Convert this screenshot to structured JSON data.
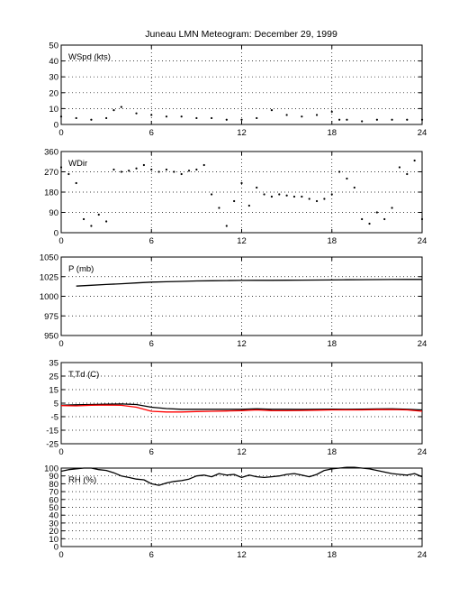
{
  "title": "Juneau LMN Meteogram:   December 29, 1999",
  "chart_data": [
    {
      "type": "scatter",
      "id": "wspd",
      "label": "WSpd (kts)",
      "xlim": [
        0,
        24
      ],
      "ylim": [
        0,
        50
      ],
      "xticks": [
        "0",
        "6",
        "12",
        "18",
        "24"
      ],
      "yticks": [
        "0",
        "10",
        "20",
        "30",
        "40",
        "50"
      ],
      "grid": true,
      "series": [
        {
          "color": "#000000",
          "x": [
            0,
            1,
            2,
            3,
            3.5,
            4,
            5,
            6,
            7,
            8,
            9,
            10,
            11,
            12,
            13,
            14,
            15,
            16,
            17,
            18,
            18.5,
            19,
            20,
            21,
            22,
            23,
            24
          ],
          "y": [
            5,
            4,
            3,
            4,
            9,
            11,
            7,
            6,
            5,
            5,
            4,
            4,
            3,
            3,
            4,
            9,
            6,
            5,
            6,
            8,
            3,
            3,
            2,
            3,
            3,
            3,
            3
          ]
        }
      ]
    },
    {
      "type": "scatter",
      "id": "wdir",
      "label": "WDir",
      "xlim": [
        0,
        24
      ],
      "ylim": [
        0,
        360
      ],
      "xticks": [
        "0",
        "6",
        "12",
        "18",
        "24"
      ],
      "yticks": [
        "0",
        "90",
        "180",
        "270",
        "360"
      ],
      "grid": true,
      "series": [
        {
          "color": "#000000",
          "x": [
            0,
            0.5,
            1,
            1.5,
            2,
            2.5,
            3,
            3.5,
            4,
            4.5,
            5,
            5.5,
            6,
            6.5,
            7,
            7.5,
            8,
            8.5,
            9,
            9.5,
            10,
            10.5,
            11,
            11.5,
            12,
            12.5,
            13,
            13.5,
            14,
            14.5,
            15,
            15.5,
            16,
            16.5,
            17,
            17.5,
            18,
            18.5,
            19,
            19.5,
            20,
            20.5,
            21,
            21.5,
            22,
            22.5,
            23,
            23.5,
            24
          ],
          "y": [
            290,
            260,
            220,
            60,
            30,
            80,
            50,
            280,
            270,
            275,
            285,
            300,
            280,
            270,
            280,
            270,
            260,
            275,
            280,
            300,
            170,
            110,
            30,
            140,
            220,
            120,
            200,
            170,
            160,
            170,
            165,
            160,
            160,
            150,
            140,
            150,
            170,
            270,
            240,
            200,
            60,
            40,
            90,
            60,
            110,
            290,
            260,
            320,
            60
          ]
        }
      ]
    },
    {
      "type": "line",
      "id": "pressure",
      "label": "P (mb)",
      "xlim": [
        0,
        24
      ],
      "ylim": [
        950,
        1050
      ],
      "xticks": [
        "0",
        "6",
        "12",
        "18",
        "24"
      ],
      "yticks": [
        "950",
        "975",
        "1000",
        "1025",
        "1050"
      ],
      "grid": true,
      "series": [
        {
          "color": "#000000",
          "x": [
            1,
            2,
            3,
            4,
            5,
            6,
            7,
            8,
            9,
            10,
            11,
            12,
            13,
            14,
            15,
            16,
            17,
            18,
            19,
            20,
            21,
            22,
            23,
            24
          ],
          "y": [
            1013,
            1014,
            1015,
            1016,
            1017,
            1018,
            1018.5,
            1019,
            1019.5,
            1019.8,
            1020,
            1020.2,
            1020.3,
            1020.4,
            1020.5,
            1020.6,
            1020.7,
            1020.8,
            1021,
            1021.2,
            1021.3,
            1021.4,
            1021.5,
            1021.5
          ]
        }
      ]
    },
    {
      "type": "line",
      "id": "temp",
      "label": "T,Td (C)",
      "xlim": [
        0,
        24
      ],
      "ylim": [
        -25,
        35
      ],
      "xticks": [
        "0",
        "6",
        "12",
        "18",
        "24"
      ],
      "yticks": [
        "-25",
        "-15",
        "-5",
        "5",
        "15",
        "25",
        "35"
      ],
      "grid": true,
      "series": [
        {
          "color": "#000000",
          "x": [
            0,
            1,
            2,
            3,
            4,
            5,
            6,
            7,
            8,
            9,
            10,
            11,
            12,
            13,
            14,
            15,
            16,
            17,
            18,
            19,
            20,
            21,
            22,
            23,
            24
          ],
          "y": [
            3.5,
            3.8,
            4,
            4.2,
            4.4,
            4,
            2,
            1,
            0.5,
            0.5,
            0.5,
            0.5,
            0.5,
            0.8,
            0.5,
            0.5,
            0.4,
            0.5,
            0.6,
            0.5,
            0.6,
            0.7,
            0.8,
            0.5,
            0
          ]
        },
        {
          "color": "#ff0000",
          "x": [
            0,
            1,
            2,
            3,
            4,
            5,
            6,
            7,
            8,
            9,
            10,
            11,
            12,
            13,
            14,
            15,
            16,
            17,
            18,
            19,
            20,
            21,
            22,
            23,
            24
          ],
          "y": [
            3.2,
            3,
            3.5,
            3.6,
            3.4,
            2,
            -1,
            -1.5,
            -1.5,
            -1.2,
            -1,
            -0.8,
            -0.5,
            0,
            -0.5,
            -0.6,
            -0.4,
            -0.2,
            0,
            0,
            0,
            0.2,
            0.3,
            0,
            -1
          ]
        }
      ]
    },
    {
      "type": "line",
      "id": "rh",
      "label": "RH (%)",
      "xlim": [
        0,
        24
      ],
      "ylim": [
        0,
        100
      ],
      "xticks": [
        "0",
        "6",
        "12",
        "18",
        "24"
      ],
      "yticks": [
        "0",
        "10",
        "20",
        "30",
        "40",
        "50",
        "60",
        "70",
        "80",
        "90",
        "100"
      ],
      "grid": true,
      "series": [
        {
          "color": "#000000",
          "x": [
            0,
            0.5,
            1,
            1.5,
            2,
            2.5,
            3,
            3.5,
            4,
            4.5,
            5,
            5.5,
            6,
            6.5,
            7,
            7.5,
            8,
            8.5,
            9,
            9.5,
            10,
            10.5,
            11,
            11.5,
            12,
            12.5,
            13,
            13.5,
            14,
            14.5,
            15,
            15.5,
            16,
            16.5,
            17,
            17.5,
            18,
            18.5,
            19,
            19.5,
            20,
            20.5,
            21,
            21.5,
            22,
            22.5,
            23,
            23.5,
            24
          ],
          "y": [
            96,
            98,
            99,
            100,
            100,
            98,
            97,
            94,
            90,
            88,
            86,
            85,
            80,
            78,
            81,
            83,
            84,
            86,
            90,
            91,
            89,
            93,
            91,
            92,
            88,
            91,
            89,
            88,
            89,
            90,
            92,
            93,
            91,
            89,
            92,
            97,
            99,
            100,
            101,
            101,
            100,
            99,
            97,
            95,
            93,
            92,
            91,
            93,
            89
          ]
        }
      ]
    }
  ]
}
